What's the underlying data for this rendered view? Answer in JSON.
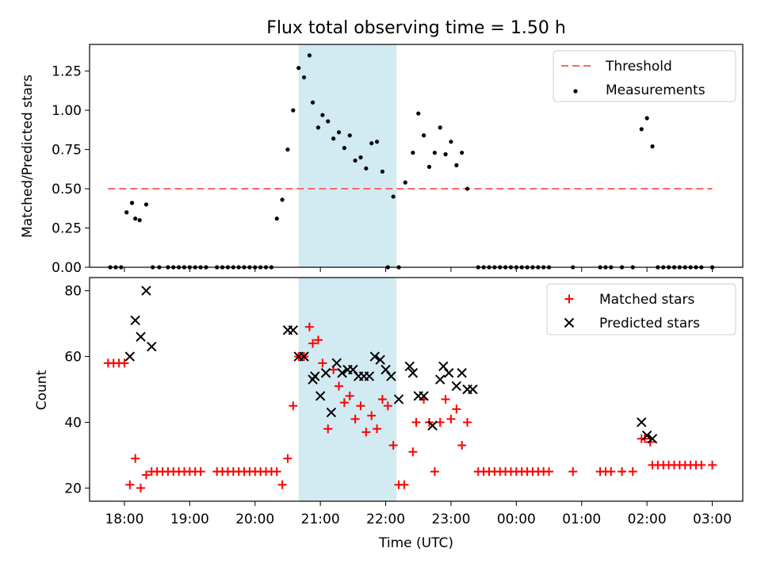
{
  "chart_data": [
    {
      "type": "scatter",
      "title": "Flux total observing time = 1.50 h",
      "xlabel": "",
      "ylabel": "Matched/Predicted stars",
      "ylim": [
        0,
        1.42
      ],
      "xlim": [
        "17:28",
        "03:28"
      ],
      "y_ticks": [
        "0.00",
        "0.25",
        "0.50",
        "0.75",
        "1.00",
        "1.25"
      ],
      "highlight_span": {
        "start": "20:40",
        "end": "22:10",
        "color": "#add8e6"
      },
      "legend_position": "upper right",
      "series": [
        {
          "name": "Threshold",
          "kind": "dashed-line",
          "color": "#ff6666",
          "x": [
            "17:45",
            "03:00"
          ],
          "y": [
            0.5,
            0.5
          ]
        },
        {
          "name": "Measurements",
          "kind": "dots",
          "color": "#000000",
          "x": [
            "17:47",
            "17:52",
            "17:57",
            "18:02",
            "18:07",
            "18:10",
            "18:14",
            "18:20",
            "18:26",
            "18:32",
            "18:40",
            "18:45",
            "18:50",
            "18:55",
            "19:00",
            "19:05",
            "19:10",
            "19:15",
            "19:25",
            "19:30",
            "19:35",
            "19:40",
            "19:45",
            "19:50",
            "19:55",
            "20:00",
            "20:05",
            "20:10",
            "20:15",
            "20:20",
            "20:25",
            "20:30",
            "20:35",
            "20:40",
            "20:45",
            "20:50",
            "20:53",
            "20:58",
            "21:02",
            "21:07",
            "21:12",
            "21:17",
            "21:22",
            "21:27",
            "21:32",
            "21:37",
            "21:42",
            "21:47",
            "21:52",
            "21:57",
            "22:02",
            "22:07",
            "22:12",
            "22:18",
            "22:25",
            "22:30",
            "22:35",
            "22:40",
            "22:45",
            "22:50",
            "22:55",
            "23:00",
            "23:05",
            "23:10",
            "23:15",
            "23:25",
            "23:30",
            "23:35",
            "23:40",
            "23:45",
            "23:50",
            "23:55",
            "00:00",
            "00:05",
            "00:10",
            "00:15",
            "00:20",
            "00:25",
            "00:30",
            "00:52",
            "01:17",
            "01:22",
            "01:27",
            "01:37",
            "01:47",
            "01:55",
            "02:00",
            "02:05",
            "02:10",
            "02:15",
            "02:20",
            "02:25",
            "02:30",
            "02:35",
            "02:40",
            "02:45",
            "02:50",
            "03:00"
          ],
          "y": [
            0,
            0,
            0,
            0.35,
            0.41,
            0.31,
            0.3,
            0.4,
            0,
            0,
            0,
            0,
            0,
            0,
            0,
            0,
            0,
            0,
            0,
            0,
            0,
            0,
            0,
            0,
            0,
            0,
            0,
            0,
            0,
            0.31,
            0.43,
            0.75,
            1.0,
            1.27,
            1.21,
            1.35,
            1.05,
            0.89,
            0.97,
            0.93,
            0.82,
            0.86,
            0.76,
            0.84,
            0.68,
            0.7,
            0.63,
            0.79,
            0.8,
            0.61,
            0,
            0.45,
            0,
            0.54,
            0.73,
            0.98,
            0.84,
            0.64,
            0.73,
            0.89,
            0.72,
            0.8,
            0.65,
            0.73,
            0.5,
            0,
            0,
            0,
            0,
            0,
            0,
            0,
            0,
            0,
            0,
            0,
            0,
            0,
            0,
            0,
            0,
            0,
            0,
            0,
            0,
            0.88,
            0.95,
            0.77,
            0,
            0,
            0,
            0,
            0,
            0,
            0,
            0,
            0,
            0
          ],
          "y_override_note": ""
        }
      ]
    },
    {
      "type": "scatter",
      "title": "",
      "xlabel": "Time (UTC)",
      "ylabel": "Count",
      "ylim": [
        16,
        84
      ],
      "xlim": [
        "17:28",
        "03:28"
      ],
      "x_ticks": [
        "18:00",
        "19:00",
        "20:00",
        "21:00",
        "22:00",
        "23:00",
        "00:00",
        "01:00",
        "02:00",
        "03:00"
      ],
      "y_ticks": [
        "20",
        "40",
        "60",
        "80"
      ],
      "highlight_span": {
        "start": "20:40",
        "end": "22:10",
        "color": "#add8e6"
      },
      "legend_position": "upper right",
      "series": [
        {
          "name": "Matched stars",
          "marker": "+",
          "color": "#ff0000",
          "x": [
            "17:45",
            "17:50",
            "17:55",
            "18:00",
            "18:05",
            "18:10",
            "18:15",
            "18:20",
            "18:25",
            "18:30",
            "18:35",
            "18:40",
            "18:45",
            "18:50",
            "18:55",
            "19:00",
            "19:05",
            "19:10",
            "19:25",
            "19:30",
            "19:35",
            "19:40",
            "19:45",
            "19:50",
            "19:55",
            "20:00",
            "20:05",
            "20:10",
            "20:15",
            "20:20",
            "20:25",
            "20:30",
            "20:35",
            "20:40",
            "20:45",
            "20:50",
            "20:53",
            "20:58",
            "21:02",
            "21:07",
            "21:12",
            "21:17",
            "21:22",
            "21:27",
            "21:32",
            "21:37",
            "21:42",
            "21:47",
            "21:52",
            "21:57",
            "22:02",
            "22:07",
            "22:12",
            "22:17",
            "22:25",
            "22:28",
            "22:35",
            "22:40",
            "22:45",
            "22:50",
            "22:55",
            "23:00",
            "23:05",
            "23:10",
            "23:15",
            "23:25",
            "23:30",
            "23:35",
            "23:40",
            "23:45",
            "23:50",
            "23:55",
            "00:00",
            "00:05",
            "00:10",
            "00:15",
            "00:20",
            "00:25",
            "00:30",
            "00:52",
            "01:17",
            "01:22",
            "01:27",
            "01:37",
            "01:47",
            "01:55",
            "01:58",
            "02:03",
            "02:05",
            "02:10",
            "02:15",
            "02:20",
            "02:25",
            "02:30",
            "02:35",
            "02:40",
            "02:45",
            "02:50",
            "03:00"
          ],
          "y": [
            58,
            58,
            58,
            58,
            21,
            29,
            20,
            24,
            25,
            25,
            25,
            25,
            25,
            25,
            25,
            25,
            25,
            25,
            25,
            25,
            25,
            25,
            25,
            25,
            25,
            25,
            25,
            25,
            25,
            25,
            21,
            29,
            45,
            60,
            60,
            69,
            64,
            65,
            58,
            38,
            56,
            51,
            46,
            48,
            41,
            45,
            37,
            42,
            38,
            47,
            45,
            33,
            21,
            21,
            31,
            40,
            47,
            40,
            25,
            40,
            47,
            41,
            44,
            33,
            40,
            25,
            25,
            25,
            25,
            25,
            25,
            25,
            25,
            25,
            25,
            25,
            25,
            25,
            25,
            25,
            25,
            25,
            25,
            25,
            25,
            35,
            35,
            34,
            27,
            27,
            27,
            27,
            27,
            27,
            27,
            27,
            27,
            27,
            27
          ]
        },
        {
          "name": "Predicted stars",
          "marker": "x",
          "color": "#000000",
          "x": [
            "18:05",
            "18:10",
            "18:15",
            "18:20",
            "18:25",
            "20:30",
            "20:35",
            "20:40",
            "20:45",
            "20:53",
            "20:55",
            "21:00",
            "21:05",
            "21:10",
            "21:15",
            "21:20",
            "21:25",
            "21:30",
            "21:35",
            "21:40",
            "21:45",
            "21:50",
            "21:55",
            "22:00",
            "22:05",
            "22:12",
            "22:22",
            "22:25",
            "22:30",
            "22:35",
            "22:43",
            "22:50",
            "22:53",
            "22:58",
            "23:05",
            "23:10",
            "23:15",
            "23:20",
            "01:55",
            "02:00",
            "02:05"
          ],
          "y": [
            60,
            71,
            66,
            80,
            63,
            68,
            68,
            60,
            60,
            53,
            54,
            48,
            55,
            43,
            58,
            55,
            56,
            56,
            54,
            54,
            54,
            60,
            59,
            56,
            54,
            47,
            57,
            55,
            48,
            48,
            39,
            53,
            57,
            55,
            51,
            55,
            50,
            50,
            40,
            36,
            35
          ]
        }
      ]
    }
  ]
}
